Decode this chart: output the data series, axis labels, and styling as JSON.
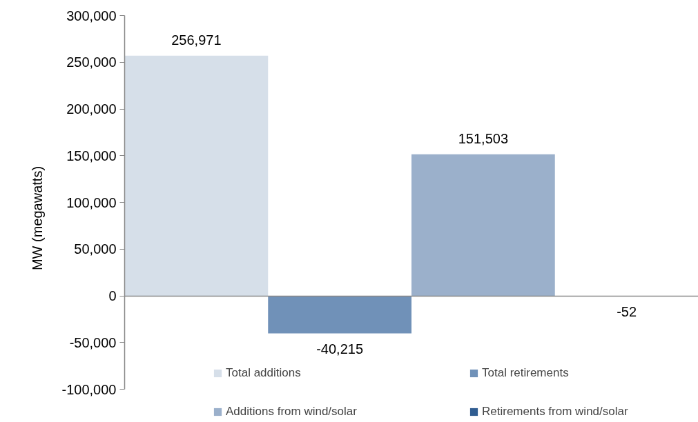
{
  "chart_data": {
    "type": "bar",
    "ylabel": "MW (megawatts)",
    "categories": [
      null
    ],
    "series": [
      {
        "name": "Total additions",
        "color": "#d6dfe9",
        "values": [
          256971
        ],
        "value_labels": [
          "256,971"
        ]
      },
      {
        "name": "Total retirements",
        "color": "#7091b8",
        "values": [
          -40215
        ],
        "value_labels": [
          "-40,215"
        ]
      },
      {
        "name": "Additions from wind/solar",
        "color": "#9bb0cb",
        "values": [
          151503
        ],
        "value_labels": [
          "151,503"
        ]
      },
      {
        "name": "Retirements from wind/solar",
        "color": "#305d91",
        "values": [
          -52
        ],
        "value_labels": [
          "-52"
        ]
      }
    ],
    "ylim": [
      -100000,
      300000
    ],
    "yticks": [
      {
        "value": -100000,
        "label": "-100,000"
      },
      {
        "value": -50000,
        "label": "-50,000"
      },
      {
        "value": 0,
        "label": "0"
      },
      {
        "value": 50000,
        "label": "50,000"
      },
      {
        "value": 100000,
        "label": "100,000"
      },
      {
        "value": 150000,
        "label": "150,000"
      },
      {
        "value": 200000,
        "label": "200,000"
      },
      {
        "value": 250000,
        "label": "250,000"
      },
      {
        "value": 300000,
        "label": "300,000"
      }
    ],
    "legend": "bottom",
    "tick_labels": "y"
  }
}
